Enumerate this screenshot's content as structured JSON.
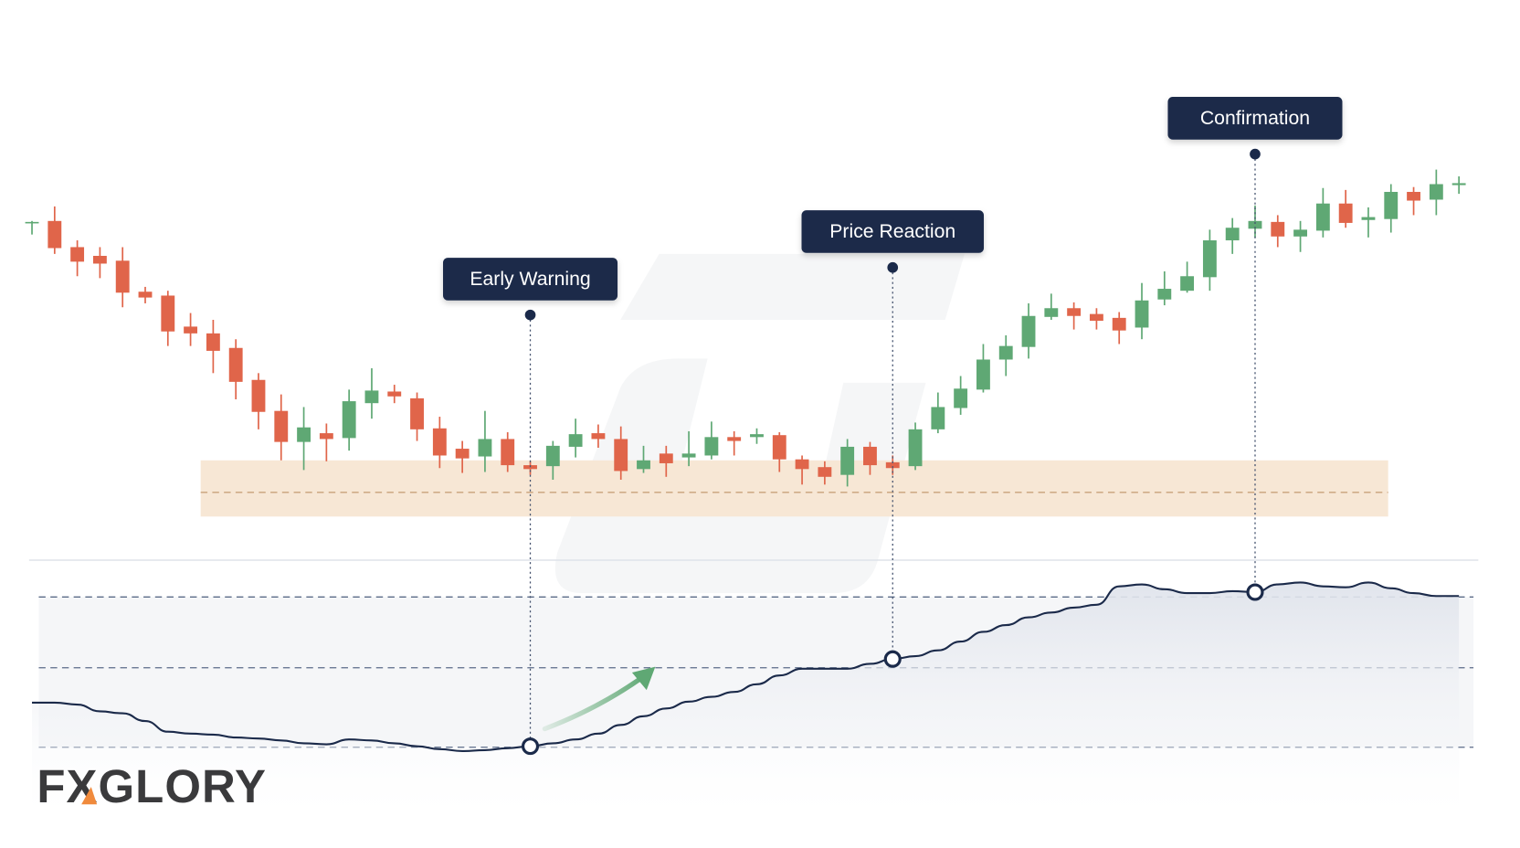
{
  "chart_data": [
    {
      "type": "candlestick",
      "open": [
        370,
        372,
        345,
        336,
        331,
        299,
        295,
        263,
        256,
        241,
        208,
        176,
        144,
        153,
        148,
        184,
        196,
        189,
        158,
        137,
        129,
        147,
        120,
        119,
        139,
        153,
        147,
        116,
        132,
        128,
        130,
        149,
        149,
        151,
        126,
        118,
        110,
        139,
        123,
        119,
        157,
        179,
        198,
        229,
        242,
        273,
        282,
        276,
        272,
        262,
        291,
        300,
        314,
        352,
        364,
        371,
        356,
        362,
        390,
        373,
        374,
        402,
        394,
        409
      ],
      "close": [
        371,
        344,
        330,
        328,
        298,
        293,
        258,
        256,
        238,
        206,
        175,
        144,
        159,
        147,
        186,
        197,
        191,
        157,
        130,
        127,
        147,
        120,
        116,
        140,
        152,
        147,
        114,
        125,
        122,
        132,
        149,
        145,
        152,
        126,
        116,
        108,
        139,
        120,
        117,
        157,
        180,
        199,
        229,
        243,
        274,
        282,
        274,
        269,
        259,
        290,
        302,
        315,
        352,
        365,
        372,
        356,
        363,
        390,
        370,
        376,
        402,
        393,
        410,
        411
      ],
      "high": [
        372,
        387,
        352,
        345,
        345,
        304,
        300,
        277,
        270,
        250,
        215,
        193,
        180,
        163,
        198,
        220,
        203,
        195,
        170,
        145,
        176,
        154,
        124,
        145,
        168,
        162,
        160,
        140,
        140,
        155,
        165,
        155,
        158,
        154,
        130,
        124,
        147,
        144,
        130,
        164,
        195,
        212,
        245,
        254,
        287,
        297,
        288,
        282,
        278,
        308,
        320,
        330,
        363,
        375,
        388,
        378,
        372,
        406,
        404,
        386,
        410,
        407,
        425,
        418
      ],
      "low": [
        358,
        338,
        315,
        313,
        283,
        287,
        243,
        243,
        215,
        188,
        157,
        125,
        115,
        124,
        135,
        168,
        184,
        145,
        117,
        112,
        113,
        113,
        110,
        105,
        128,
        138,
        105,
        112,
        108,
        119,
        126,
        130,
        142,
        113,
        100,
        100,
        98,
        110,
        110,
        115,
        153,
        172,
        195,
        212,
        230,
        270,
        260,
        260,
        245,
        250,
        285,
        298,
        300,
        338,
        355,
        345,
        340,
        355,
        365,
        355,
        360,
        378,
        378,
        400
      ],
      "ylim": [
        0,
        600
      ],
      "up_color": "#5fa874",
      "down_color": "#e0654a",
      "zone": {
        "low": 67,
        "high": 125,
        "mid": 92,
        "color": "#f7e7d5"
      }
    },
    {
      "type": "line",
      "values": [
        75,
        75,
        73,
        66,
        64,
        56,
        45,
        43,
        42,
        39,
        38,
        36,
        33,
        32,
        37,
        36,
        33,
        30,
        27,
        25,
        26,
        28,
        30,
        33,
        37,
        43,
        52,
        61,
        69,
        76,
        81,
        86,
        94,
        103,
        110,
        110,
        110,
        115,
        120,
        123,
        129,
        138,
        148,
        155,
        163,
        168,
        173,
        176,
        195,
        197,
        192,
        188,
        188,
        190,
        189,
        197,
        199,
        195,
        194,
        199,
        193,
        188,
        185,
        185
      ],
      "ylim": [
        0,
        250
      ],
      "levels": [
        29,
        111,
        184
      ],
      "color": "#1b2a4a"
    }
  ],
  "annotations": [
    "Early Warning",
    "Price Reaction",
    "Confirmation"
  ],
  "logo": "FXGLORY"
}
